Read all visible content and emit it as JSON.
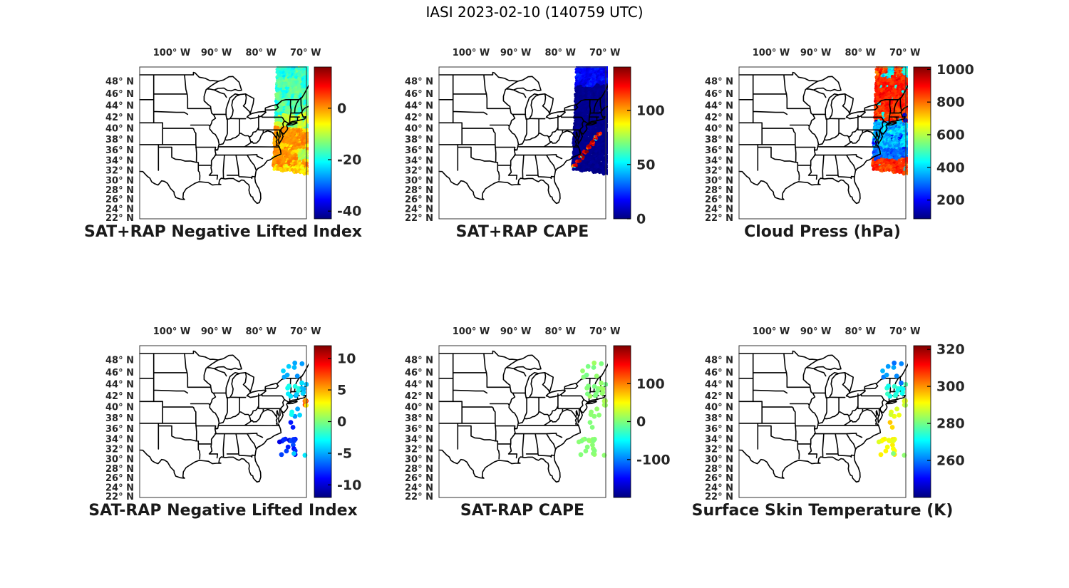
{
  "figure": {
    "title": "IASI 2023-02-10 (140759 UTC)"
  },
  "colors": {
    "background": "#ffffff",
    "text": "#1a1a1a",
    "map_line": "#000000",
    "axis_box": "#333333"
  },
  "axes": {
    "lon_labels": [
      "100° W",
      "90° W",
      "80° W",
      "70° W"
    ],
    "lon_values": [
      -100,
      -90,
      -80,
      -70
    ],
    "lat_labels": [
      "48° N",
      "46° N",
      "44° N",
      "42° N",
      "40° N",
      "38° N",
      "36° N",
      "34° N",
      "32° N",
      "30° N",
      "28° N",
      "26° N",
      "24° N",
      "22° N"
    ],
    "lat_values": [
      48,
      46,
      44,
      42,
      40,
      38,
      36,
      34,
      32,
      30,
      28,
      26,
      24,
      22
    ],
    "lon_range": [
      -107.2,
      -69.8
    ],
    "lat_range": [
      21.8,
      50.2
    ]
  },
  "swath_shape": {
    "left_lon_at_31p5": -77.25,
    "left_tilt_deg_per_lat": 0.055,
    "bottom_lat_at_77W": 32.18,
    "bottom_slope": -0.132
  },
  "observations": [
    {
      "id": 1,
      "lon": [
        -75.2,
        -69.8
      ],
      "lat": [
        44.2,
        47.9
      ],
      "n": 9,
      "values": {
        "li": [
          -4.5,
          1.2
        ],
        "cape": [
          5,
          9
        ],
        "tskin": [
          262,
          3
        ]
      }
    },
    {
      "id": 2,
      "lon": [
        -74.2,
        -69.8
      ],
      "lat": [
        40.9,
        44.2
      ],
      "n": 14,
      "values": {
        "li": [
          -3.5,
          1.5
        ],
        "cape": [
          5,
          9
        ],
        "tskin": [
          274,
          4
        ]
      }
    },
    {
      "id": 3,
      "lon": [
        -70.6,
        -69.8
      ],
      "lat": [
        40.3,
        41.2
      ],
      "n": 6,
      "values": {
        "li": [
          6,
          4
        ],
        "cape": [
          8,
          12
        ],
        "tskin": [
          288,
          3
        ]
      }
    },
    {
      "id": 4,
      "lon": [
        -73.5,
        -70.0
      ],
      "lat": [
        38.2,
        40.2
      ],
      "n": 5,
      "values": {
        "li": [
          -4.5,
          2
        ],
        "cape": [
          4,
          8
        ],
        "tskin": [
          287,
          3
        ]
      }
    },
    {
      "id": 5,
      "lon": [
        -73.8,
        -72.4
      ],
      "lat": [
        36.0,
        38.4
      ],
      "n": 2,
      "values": {
        "li": [
          -8,
          1
        ],
        "cape": [
          5,
          6
        ],
        "tskin": [
          294,
          2
        ]
      }
    },
    {
      "id": 6,
      "lon": [
        -75.9,
        -72.3
      ],
      "lat": [
        30.8,
        34.3
      ],
      "n": 17,
      "values": {
        "li": [
          -8.5,
          1.5
        ],
        "cape": [
          5,
          8
        ],
        "tskin": [
          291,
          2.5
        ]
      }
    },
    {
      "id": 7,
      "lon": [
        -73.0,
        -69.8
      ],
      "lat": [
        30.6,
        31.1
      ],
      "n": 2,
      "values": {
        "li": [
          -4,
          0.5
        ],
        "cape": [
          5,
          6
        ],
        "tskin": [
          282,
          2
        ]
      }
    }
  ],
  "chart_data": [
    {
      "name": "sat-plus-rap-nli",
      "type": "scatter-map",
      "colormap": "jet",
      "title": "SAT+RAP Negative Lifted Index",
      "colorbar": {
        "range": [
          -43,
          16
        ],
        "ticks": [
          0,
          -20,
          -40
        ]
      },
      "swath_regions": [
        {
          "lat": [
            48.4,
            50.5
          ],
          "lon": [
            -78,
            -73.0
          ],
          "v": -19,
          "n": 2.5
        },
        {
          "lat": [
            48.4,
            50.5
          ],
          "v": -17,
          "n": 3,
          "patch": {
            "v": -21,
            "p": 0.45,
            "s": 1.0
          }
        },
        {
          "lat": [
            46.6,
            48.4
          ],
          "lon": [
            -70.8,
            -66
          ],
          "v": -20,
          "n": 2
        },
        {
          "lat": [
            42.3,
            48.4
          ],
          "v": -15,
          "n": 2,
          "patch": {
            "v": -20,
            "p": 0.3,
            "s": 0.9
          }
        },
        {
          "lat": [
            40.0,
            42.3
          ],
          "v": -8.5,
          "n": 2.5,
          "patch": {
            "v": -14,
            "p": 0.3,
            "s": 0.8
          }
        },
        {
          "lat": [
            33.9,
            36.2
          ],
          "lon": [
            -71.5,
            -66
          ],
          "v": -10,
          "n": 3
        },
        {
          "lat": [
            36.2,
            40.0
          ],
          "v": 0,
          "n": 2,
          "patch": {
            "v": -5,
            "p": 0.3,
            "s": 0.8
          }
        },
        {
          "lat": [
            32.7,
            36.2
          ],
          "v": 0.5,
          "n": 2,
          "patch": {
            "v": -4,
            "p": 0.25,
            "s": 0.7
          }
        },
        {
          "lat": [
            30.0,
            32.7
          ],
          "v": -5,
          "n": 4
        }
      ]
    },
    {
      "name": "sat-plus-rap-cape",
      "type": "scatter-map",
      "colormap": "jet",
      "title": "SAT+RAP CAPE",
      "colorbar": {
        "range": [
          0,
          140
        ],
        "ticks": [
          100,
          50,
          0
        ]
      },
      "swath_regions": [
        {
          "lat": [
            47.3,
            50.5
          ],
          "v": 18,
          "n": 7
        },
        {
          "lat": [
            30.0,
            47.3
          ],
          "v": 2,
          "n": 2
        }
      ],
      "streak": {
        "from": [
          -77.0,
          32.7
        ],
        "to": [
          -70.6,
          39.6
        ],
        "value": 128,
        "noise": 10,
        "alt_prob": 0.1,
        "alt_value": [
          45,
          95
        ]
      }
    },
    {
      "name": "cloud-press",
      "type": "scatter-map",
      "colormap": "jet",
      "title": "Cloud Press (hPa)",
      "colorbar": {
        "range": [
          85,
          1015
        ],
        "ticks": [
          1000,
          800,
          600,
          400,
          200
        ]
      },
      "swath_regions": [
        {
          "lat": [
            48.6,
            50.5
          ],
          "v": 430,
          "n": 90,
          "patch": {
            "v": 860,
            "p": 0.42,
            "s": 1.0
          }
        },
        {
          "lat": [
            43.6,
            48.6
          ],
          "v": 870,
          "n": 45,
          "patch": {
            "v": 430,
            "p": 0.15,
            "s": 0.8
          }
        },
        {
          "lat": [
            41.2,
            43.6
          ],
          "v": 850,
          "n": 60,
          "patch": {
            "v": 450,
            "p": 0.12,
            "s": 0.7
          }
        },
        {
          "lat": [
            36.2,
            41.2
          ],
          "v": 380,
          "n": 80,
          "patch": {
            "v": 240,
            "p": 0.22,
            "s": 0.7
          }
        },
        {
          "lat": [
            34.1,
            36.2
          ],
          "v": 300,
          "n": 60
        },
        {
          "lat": [
            30.0,
            34.1
          ],
          "v": 850,
          "n": 55,
          "patch": {
            "v": 430,
            "p": 0.1,
            "s": 0.7
          }
        }
      ],
      "extra_points": [
        {
          "lon": -70.05,
          "lat": 42.35,
          "v": 165
        },
        {
          "lon": -69.9,
          "lat": 41.45,
          "v": 150
        }
      ]
    },
    {
      "name": "sat-minus-rap-nli",
      "type": "scatter-map",
      "colormap": "jet",
      "title": "SAT-RAP Negative Lifted Index",
      "colorbar": {
        "range": [
          -12,
          12
        ],
        "ticks": [
          10,
          5,
          0,
          -5,
          -10
        ]
      },
      "cluster_key": "li"
    },
    {
      "name": "sat-minus-rap-cape",
      "type": "scatter-map",
      "colormap": "jet",
      "title": "SAT-RAP CAPE",
      "colorbar": {
        "range": [
          -200,
          200
        ],
        "ticks": [
          100,
          0,
          -100
        ]
      },
      "cluster_key": "cape"
    },
    {
      "name": "surface-skin-temperature",
      "type": "scatter-map",
      "colormap": "jet",
      "title": "Surface Skin Temperature (K)",
      "colorbar": {
        "range": [
          240,
          322
        ],
        "ticks": [
          320,
          300,
          280,
          260
        ]
      },
      "cluster_key": "tskin"
    }
  ]
}
